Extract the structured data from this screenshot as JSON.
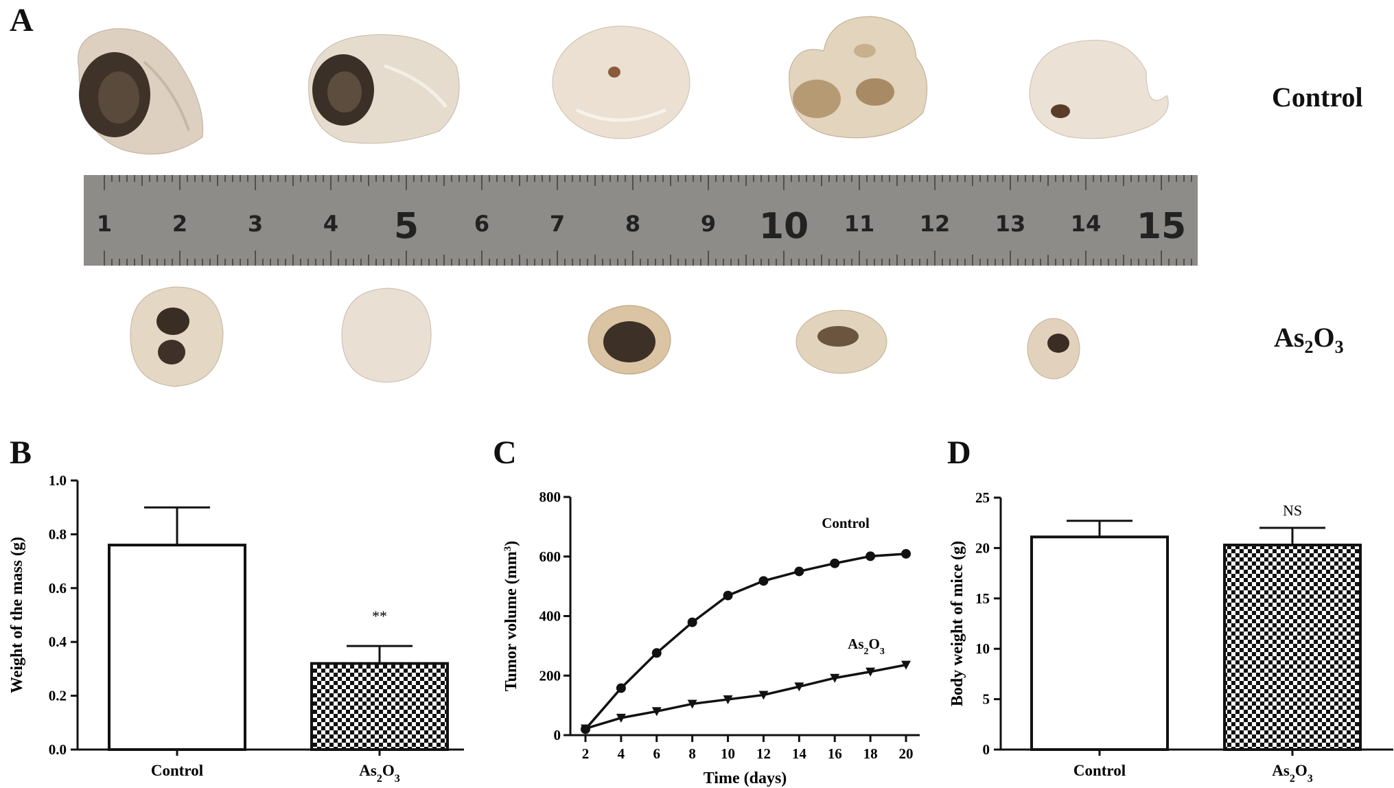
{
  "panel_labels": {
    "a": "A",
    "b": "B",
    "c": "C",
    "d": "D"
  },
  "panel_a": {
    "control_label": "Control",
    "as2o3_label_base": "As",
    "as2o3_label_sub1": "2",
    "as2o3_label_mid": "O",
    "as2o3_label_sub2": "3",
    "ruler_numbers": [
      "1",
      "2",
      "3",
      "4",
      "5",
      "6",
      "7",
      "8",
      "9",
      "10",
      "11",
      "12",
      "13",
      "14",
      "15"
    ],
    "colors": {
      "tissue": "#eadfcf",
      "necrosis": "#4a3a2c",
      "ruler": "#8d8c88"
    }
  },
  "chart_data": [
    {
      "type": "bar",
      "panel": "B",
      "ylabel": "Weight of the mass (g)",
      "categories": [
        "Control",
        "As2O3"
      ],
      "values": [
        0.76,
        0.32
      ],
      "errors": [
        0.14,
        0.065
      ],
      "ylim": [
        0.0,
        1.0
      ],
      "yticks": [
        "0.0",
        "0.2",
        "0.4",
        "0.6",
        "0.8",
        "1.0"
      ],
      "annotations": [
        {
          "category": "As2O3",
          "text": "**"
        }
      ],
      "fills": [
        "white",
        "checkered"
      ]
    },
    {
      "type": "line",
      "panel": "C",
      "xlabel": "Time (days)",
      "ylabel": "Tumor volume (mm3)",
      "x": [
        2,
        4,
        6,
        8,
        10,
        12,
        14,
        16,
        18,
        20
      ],
      "xticks": [
        "2",
        "4",
        "6",
        "8",
        "10",
        "12",
        "14",
        "16",
        "18",
        "20"
      ],
      "ylim": [
        0,
        800
      ],
      "yticks": [
        "0",
        "200",
        "400",
        "600",
        "800"
      ],
      "series": [
        {
          "name": "Control",
          "marker": "circle",
          "values": [
            20,
            158,
            276,
            379,
            469,
            518,
            550,
            577,
            601,
            609
          ]
        },
        {
          "name": "As2O3",
          "marker": "triangle-down",
          "values": [
            22,
            58,
            80,
            105,
            120,
            135,
            163,
            192,
            213,
            236
          ]
        }
      ]
    },
    {
      "type": "bar",
      "panel": "D",
      "ylabel": "Body weight of mice  (g)",
      "categories": [
        "Control",
        "As2O3"
      ],
      "values": [
        21.1,
        20.3
      ],
      "errors": [
        1.6,
        1.7
      ],
      "ylim": [
        0,
        25
      ],
      "yticks": [
        "0",
        "5",
        "10",
        "15",
        "20",
        "25"
      ],
      "annotations": [
        {
          "category": "As2O3",
          "text": "NS"
        }
      ],
      "fills": [
        "white",
        "checkered"
      ]
    }
  ]
}
